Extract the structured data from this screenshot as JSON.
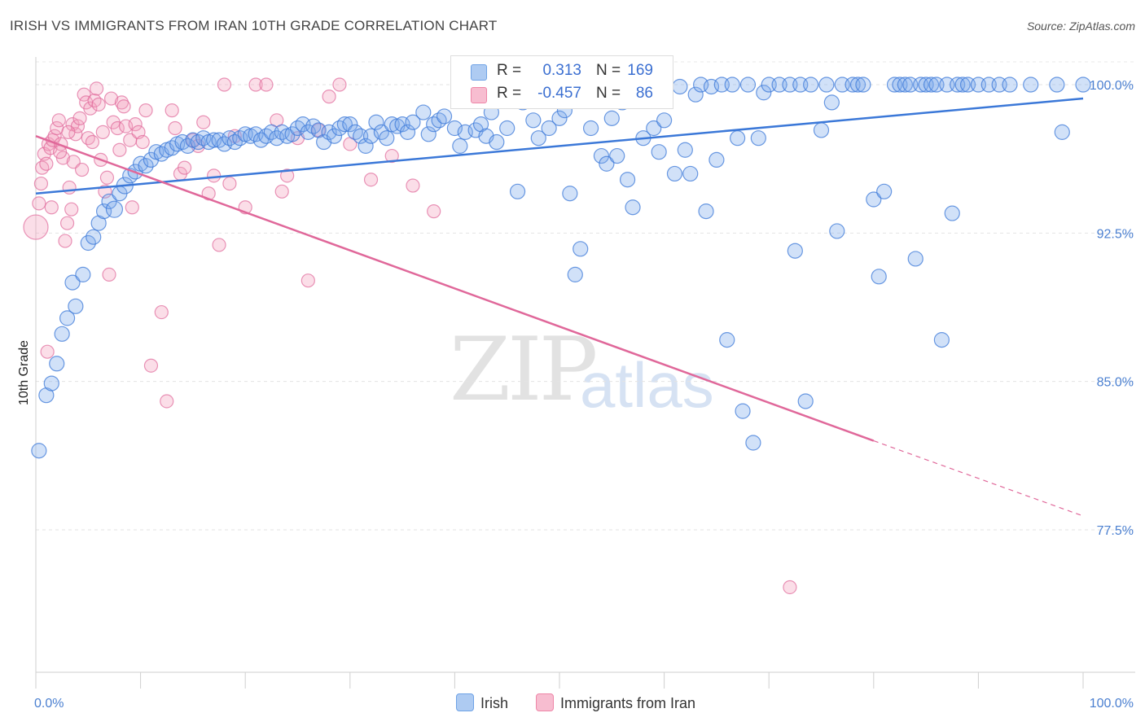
{
  "title": "IRISH VS IMMIGRANTS FROM IRAN 10TH GRADE CORRELATION CHART",
  "source": "Source: ZipAtlas.com",
  "watermark": {
    "zip": "ZIP",
    "atlas": "atlas"
  },
  "legend": {
    "r_label": "R =",
    "n_label": "N =",
    "series": [
      {
        "name": "Irish",
        "r": "0.313",
        "n": "169",
        "color": "#6fa3e6",
        "fill": "#aecbf2"
      },
      {
        "name": "Immigrants from Iran",
        "r": "-0.457",
        "n": "86",
        "color": "#ee86a8",
        "fill": "#f7bdd0"
      }
    ]
  },
  "chart_data": {
    "type": "scatter",
    "title": "IRISH VS IMMIGRANTS FROM IRAN 10TH GRADE CORRELATION CHART",
    "xlabel": "",
    "ylabel": "10th Grade",
    "xlim": [
      0,
      100
    ],
    "ylim": [
      70.3,
      101.4
    ],
    "x_tick_labels": [
      "0.0%",
      "100.0%"
    ],
    "y_ticks": [
      77.5,
      85.0,
      92.5,
      100.0
    ],
    "y_tick_labels": [
      "77.5%",
      "85.0%",
      "92.5%",
      "100.0%"
    ],
    "series": [
      {
        "name": "Irish",
        "color": "#3b78d8",
        "trend": {
          "x": [
            0,
            100
          ],
          "y": [
            94.5,
            99.3
          ]
        },
        "points": [
          [
            0.3,
            81.5
          ],
          [
            1,
            84.3
          ],
          [
            1.5,
            84.9
          ],
          [
            2,
            85.9
          ],
          [
            2.5,
            87.4
          ],
          [
            3,
            88.2
          ],
          [
            3.8,
            88.8
          ],
          [
            3.5,
            90.0
          ],
          [
            4.5,
            90.4
          ],
          [
            5,
            92.0
          ],
          [
            5.5,
            92.3
          ],
          [
            6,
            93.0
          ],
          [
            6.5,
            93.6
          ],
          [
            7,
            94.1
          ],
          [
            7.5,
            93.7
          ],
          [
            8,
            94.5
          ],
          [
            8.5,
            94.9
          ],
          [
            9,
            95.4
          ],
          [
            9.5,
            95.6
          ],
          [
            10,
            96.0
          ],
          [
            10.5,
            95.9
          ],
          [
            11,
            96.2
          ],
          [
            11.5,
            96.6
          ],
          [
            12,
            96.5
          ],
          [
            12.5,
            96.7
          ],
          [
            13,
            96.8
          ],
          [
            13.5,
            97.0
          ],
          [
            14,
            97.1
          ],
          [
            14.5,
            96.9
          ],
          [
            15,
            97.2
          ],
          [
            15.5,
            97.1
          ],
          [
            16,
            97.3
          ],
          [
            16.5,
            97.1
          ],
          [
            17,
            97.2
          ],
          [
            17.5,
            97.2
          ],
          [
            18,
            97.0
          ],
          [
            18.5,
            97.3
          ],
          [
            19,
            97.1
          ],
          [
            19.5,
            97.3
          ],
          [
            20,
            97.5
          ],
          [
            20.5,
            97.4
          ],
          [
            21,
            97.5
          ],
          [
            21.5,
            97.2
          ],
          [
            22,
            97.4
          ],
          [
            22.5,
            97.6
          ],
          [
            23,
            97.3
          ],
          [
            23.5,
            97.6
          ],
          [
            24,
            97.4
          ],
          [
            24.5,
            97.5
          ],
          [
            25,
            97.8
          ],
          [
            25.5,
            98.0
          ],
          [
            26,
            97.6
          ],
          [
            26.5,
            97.9
          ],
          [
            27,
            97.7
          ],
          [
            27.5,
            97.1
          ],
          [
            28,
            97.6
          ],
          [
            28.5,
            97.4
          ],
          [
            29,
            97.8
          ],
          [
            29.5,
            98.0
          ],
          [
            30,
            98.0
          ],
          [
            30.5,
            97.6
          ],
          [
            31,
            97.4
          ],
          [
            31.5,
            96.9
          ],
          [
            32,
            97.4
          ],
          [
            32.5,
            98.1
          ],
          [
            33,
            97.6
          ],
          [
            33.5,
            97.3
          ],
          [
            34,
            98.0
          ],
          [
            34.5,
            97.9
          ],
          [
            35,
            98.0
          ],
          [
            35.5,
            97.6
          ],
          [
            36,
            98.1
          ],
          [
            37,
            98.6
          ],
          [
            37.5,
            97.5
          ],
          [
            38,
            98.0
          ],
          [
            38.5,
            98.2
          ],
          [
            39,
            98.4
          ],
          [
            40,
            97.8
          ],
          [
            40.5,
            96.9
          ],
          [
            41,
            97.6
          ],
          [
            42,
            97.7
          ],
          [
            42.5,
            98.0
          ],
          [
            43,
            97.4
          ],
          [
            43.5,
            98.6
          ],
          [
            44,
            97.1
          ],
          [
            45,
            97.8
          ],
          [
            46,
            94.6
          ],
          [
            46.5,
            99.1
          ],
          [
            47,
            100.0
          ],
          [
            47.5,
            98.2
          ],
          [
            48,
            97.3
          ],
          [
            49,
            97.8
          ],
          [
            50,
            98.3
          ],
          [
            50.5,
            98.7
          ],
          [
            51,
            94.5
          ],
          [
            51.5,
            90.4
          ],
          [
            52,
            91.7
          ],
          [
            53,
            97.8
          ],
          [
            54,
            96.4
          ],
          [
            54.5,
            96.0
          ],
          [
            55,
            98.3
          ],
          [
            55.5,
            96.4
          ],
          [
            56,
            99.1
          ],
          [
            56.5,
            95.2
          ],
          [
            57,
            93.8
          ],
          [
            58,
            97.3
          ],
          [
            58.5,
            100.0
          ],
          [
            59,
            97.8
          ],
          [
            59.5,
            96.6
          ],
          [
            60,
            98.2
          ],
          [
            61,
            95.5
          ],
          [
            61.5,
            99.9
          ],
          [
            62,
            96.7
          ],
          [
            62.5,
            95.5
          ],
          [
            63,
            99.5
          ],
          [
            63.5,
            100.0
          ],
          [
            64,
            93.6
          ],
          [
            64.5,
            99.9
          ],
          [
            65,
            96.2
          ],
          [
            65.5,
            100.0
          ],
          [
            66,
            87.1
          ],
          [
            66.5,
            100.0
          ],
          [
            67,
            97.3
          ],
          [
            67.5,
            83.5
          ],
          [
            68,
            100.0
          ],
          [
            68.5,
            81.9
          ],
          [
            69,
            97.3
          ],
          [
            69.5,
            99.6
          ],
          [
            70,
            100.0
          ],
          [
            71,
            100.0
          ],
          [
            72,
            100.0
          ],
          [
            72.5,
            91.6
          ],
          [
            73,
            100.0
          ],
          [
            73.5,
            84.0
          ],
          [
            74,
            100.0
          ],
          [
            75,
            97.7
          ],
          [
            75.5,
            100.0
          ],
          [
            76,
            99.1
          ],
          [
            76.5,
            92.6
          ],
          [
            77,
            100.0
          ],
          [
            78,
            100.0
          ],
          [
            78.5,
            100.0
          ],
          [
            79,
            100.0
          ],
          [
            80,
            94.2
          ],
          [
            80.5,
            90.3
          ],
          [
            81,
            94.6
          ],
          [
            82,
            100.0
          ],
          [
            82.5,
            100.0
          ],
          [
            83,
            100.0
          ],
          [
            83.5,
            100.0
          ],
          [
            84,
            91.2
          ],
          [
            84.5,
            100.0
          ],
          [
            85,
            100.0
          ],
          [
            85.5,
            100.0
          ],
          [
            86,
            100.0
          ],
          [
            86.5,
            87.1
          ],
          [
            87,
            100.0
          ],
          [
            87.5,
            93.5
          ],
          [
            88,
            100.0
          ],
          [
            88.5,
            100.0
          ],
          [
            89,
            100.0
          ],
          [
            90,
            100.0
          ],
          [
            91,
            100.0
          ],
          [
            92,
            100.0
          ],
          [
            93,
            100.0
          ],
          [
            95,
            100.0
          ],
          [
            97.5,
            100.0
          ],
          [
            98,
            97.6
          ],
          [
            100,
            100.0
          ]
        ]
      },
      {
        "name": "Immigrants from Iran",
        "color": "#e0689a",
        "trend": {
          "x": [
            0,
            80
          ],
          "y": [
            97.4,
            82.0
          ]
        },
        "trend_dashed": {
          "x": [
            80,
            100
          ],
          "y": [
            82.0,
            78.2
          ]
        },
        "points": [
          [
            0,
            92.8
          ],
          [
            0.3,
            94.0
          ],
          [
            0.5,
            95.0
          ],
          [
            0.6,
            95.8
          ],
          [
            0.8,
            96.5
          ],
          [
            1,
            96.0
          ],
          [
            1.2,
            97.0
          ],
          [
            1.4,
            96.8
          ],
          [
            1.5,
            93.8
          ],
          [
            1.6,
            97.2
          ],
          [
            1.8,
            97.4
          ],
          [
            2,
            97.8
          ],
          [
            2.2,
            98.2
          ],
          [
            2.4,
            97.0
          ],
          [
            2.6,
            96.3
          ],
          [
            2.8,
            92.1
          ],
          [
            3,
            93.0
          ],
          [
            3.2,
            94.8
          ],
          [
            3.4,
            93.7
          ],
          [
            3.5,
            98.0
          ],
          [
            3.6,
            96.1
          ],
          [
            3.8,
            97.5
          ],
          [
            4,
            97.9
          ],
          [
            4.2,
            98.3
          ],
          [
            4.4,
            95.7
          ],
          [
            4.6,
            99.5
          ],
          [
            4.8,
            99.1
          ],
          [
            5,
            97.3
          ],
          [
            5.2,
            98.8
          ],
          [
            5.4,
            97.1
          ],
          [
            5.6,
            99.2
          ],
          [
            5.8,
            99.8
          ],
          [
            6,
            99.0
          ],
          [
            6.2,
            96.2
          ],
          [
            6.4,
            97.6
          ],
          [
            6.6,
            94.6
          ],
          [
            6.8,
            95.3
          ],
          [
            7,
            90.4
          ],
          [
            7.2,
            99.3
          ],
          [
            7.4,
            98.1
          ],
          [
            7.8,
            97.8
          ],
          [
            8,
            96.7
          ],
          [
            8.2,
            99.1
          ],
          [
            8.4,
            98.9
          ],
          [
            8.6,
            97.9
          ],
          [
            9,
            97.2
          ],
          [
            9.2,
            93.8
          ],
          [
            9.5,
            98.0
          ],
          [
            9.8,
            97.6
          ],
          [
            10.2,
            97.1
          ],
          [
            10.5,
            98.7
          ],
          [
            11,
            85.8
          ],
          [
            12,
            88.5
          ],
          [
            12.5,
            84.0
          ],
          [
            13,
            98.7
          ],
          [
            13.3,
            97.8
          ],
          [
            13.8,
            95.5
          ],
          [
            14.2,
            95.8
          ],
          [
            15,
            97.2
          ],
          [
            15.5,
            96.9
          ],
          [
            16,
            98.1
          ],
          [
            16.5,
            94.5
          ],
          [
            17,
            95.4
          ],
          [
            17.5,
            91.9
          ],
          [
            18,
            100.0
          ],
          [
            18.5,
            95.0
          ],
          [
            19,
            97.4
          ],
          [
            20,
            93.8
          ],
          [
            21,
            100.0
          ],
          [
            22,
            100.0
          ],
          [
            23,
            98.2
          ],
          [
            23.5,
            94.6
          ],
          [
            24,
            95.4
          ],
          [
            25,
            97.3
          ],
          [
            26,
            90.1
          ],
          [
            27,
            97.7
          ],
          [
            28,
            99.4
          ],
          [
            29,
            100.0
          ],
          [
            30,
            97.0
          ],
          [
            32,
            95.2
          ],
          [
            34,
            96.4
          ],
          [
            36,
            94.9
          ],
          [
            38,
            93.6
          ],
          [
            72,
            74.6
          ],
          [
            1.1,
            86.5
          ],
          [
            3.1,
            97.6
          ],
          [
            2.3,
            96.6
          ]
        ]
      }
    ]
  }
}
